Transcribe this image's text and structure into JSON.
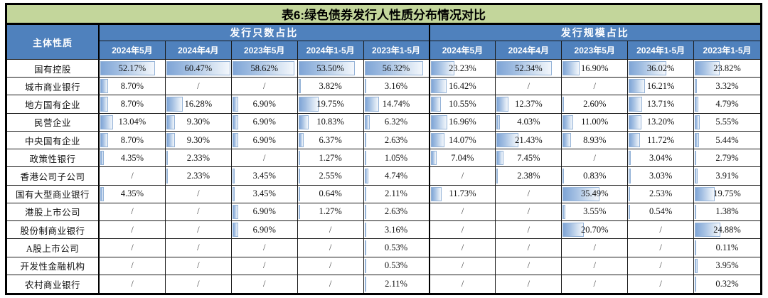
{
  "title": "表6:绿色债券发行人性质分布情况对比",
  "table": {
    "corner_header": "主体性质",
    "groups": [
      {
        "label": "发行只数占比",
        "columns": [
          "2024年5月",
          "2024年4月",
          "2023年5月",
          "2024年1-5月",
          "2023年1-5月"
        ]
      },
      {
        "label": "发行规模占比",
        "columns": [
          "2024年5月",
          "2024年4月",
          "2023年5月",
          "2024年1-5月",
          "2023年1-5月"
        ]
      }
    ],
    "missing_marker": "/",
    "rows": [
      {
        "label": "国有控股",
        "count": [
          "52.17%",
          "60.47%",
          "58.62%",
          "53.50%",
          "56.32%"
        ],
        "scale": [
          "23.23%",
          "52.34%",
          "16.90%",
          "36.02%",
          "23.82%"
        ]
      },
      {
        "label": "城市商业银行",
        "count": [
          "8.70%",
          "/",
          "/",
          "3.82%",
          "3.16%"
        ],
        "scale": [
          "16.42%",
          "/",
          "/",
          "16.21%",
          "3.32%"
        ]
      },
      {
        "label": "地方国有企业",
        "count": [
          "8.70%",
          "16.28%",
          "6.90%",
          "19.75%",
          "14.74%"
        ],
        "scale": [
          "10.55%",
          "12.37%",
          "2.60%",
          "13.71%",
          "4.79%"
        ]
      },
      {
        "label": "民营企业",
        "count": [
          "13.04%",
          "9.30%",
          "6.90%",
          "10.83%",
          "6.32%"
        ],
        "scale": [
          "16.96%",
          "4.03%",
          "11.00%",
          "13.20%",
          "5.55%"
        ]
      },
      {
        "label": "中央国有企业",
        "count": [
          "8.70%",
          "9.30%",
          "6.90%",
          "6.37%",
          "2.63%"
        ],
        "scale": [
          "14.07%",
          "21.43%",
          "8.93%",
          "11.72%",
          "5.44%"
        ]
      },
      {
        "label": "政策性银行",
        "count": [
          "4.35%",
          "2.33%",
          "/",
          "1.27%",
          "1.05%"
        ],
        "scale": [
          "7.04%",
          "7.45%",
          "/",
          "3.04%",
          "2.79%"
        ]
      },
      {
        "label": "香港公司子公司",
        "count": [
          "/",
          "2.33%",
          "3.45%",
          "2.55%",
          "4.74%"
        ],
        "scale": [
          "/",
          "2.38%",
          "0.83%",
          "3.03%",
          "3.91%"
        ]
      },
      {
        "label": "国有大型商业银行",
        "count": [
          "4.35%",
          "/",
          "3.45%",
          "0.64%",
          "2.11%"
        ],
        "scale": [
          "11.73%",
          "/",
          "35.49%",
          "2.53%",
          "19.75%"
        ]
      },
      {
        "label": "港股上市公司",
        "count": [
          "/",
          "/",
          "6.90%",
          "1.27%",
          "2.63%"
        ],
        "scale": [
          "/",
          "/",
          "3.55%",
          "0.54%",
          "1.38%"
        ]
      },
      {
        "label": "股份制商业银行",
        "count": [
          "/",
          "/",
          "6.90%",
          "/",
          "3.16%"
        ],
        "scale": [
          "/",
          "/",
          "20.70%",
          "/",
          "24.88%"
        ]
      },
      {
        "label": "A股上市公司",
        "count": [
          "/",
          "/",
          "/",
          "/",
          "0.53%"
        ],
        "scale": [
          "/",
          "/",
          "/",
          "/",
          "0.11%"
        ]
      },
      {
        "label": "开发性金融机构",
        "count": [
          "/",
          "/",
          "/",
          "/",
          "0.53%"
        ],
        "scale": [
          "/",
          "/",
          "/",
          "/",
          "3.95%"
        ]
      },
      {
        "label": "农村商业银行",
        "count": [
          "/",
          "/",
          "/",
          "/",
          "2.11%"
        ],
        "scale": [
          "/",
          "/",
          "/",
          "/",
          "0.32%"
        ]
      }
    ]
  },
  "colors": {
    "title_bg": "#C3D69B",
    "header_bg": "#4F81BD",
    "header_text": "#FFFFFF",
    "bar_fill_start": "#7FA5D6",
    "bar_fill_end": "#F3F7FC",
    "bar_border": "#95B3D7",
    "grid_line": "#000000"
  },
  "chart_data": {
    "type": "table",
    "title": "表6:绿色债券发行人性质分布情况对比",
    "row_header": "主体性质",
    "column_groups": [
      "发行只数占比",
      "发行规模占比"
    ],
    "columns": [
      "2024年5月",
      "2024年4月",
      "2023年5月",
      "2024年1-5月",
      "2023年1-5月"
    ],
    "unit": "%",
    "databar_style": "blue gradient left-aligned, length proportional to value, shared scale max ≈ 60.47",
    "rows": [
      {
        "label": "国有控股",
        "发行只数占比": [
          52.17,
          60.47,
          58.62,
          53.5,
          56.32
        ],
        "发行规模占比": [
          23.23,
          52.34,
          16.9,
          36.02,
          23.82
        ]
      },
      {
        "label": "城市商业银行",
        "发行只数占比": [
          8.7,
          null,
          null,
          3.82,
          3.16
        ],
        "发行规模占比": [
          16.42,
          null,
          null,
          16.21,
          3.32
        ]
      },
      {
        "label": "地方国有企业",
        "发行只数占比": [
          8.7,
          16.28,
          6.9,
          19.75,
          14.74
        ],
        "发行规模占比": [
          10.55,
          12.37,
          2.6,
          13.71,
          4.79
        ]
      },
      {
        "label": "民营企业",
        "发行只数占比": [
          13.04,
          9.3,
          6.9,
          10.83,
          6.32
        ],
        "发行规模占比": [
          16.96,
          4.03,
          11.0,
          13.2,
          5.55
        ]
      },
      {
        "label": "中央国有企业",
        "发行只数占比": [
          8.7,
          9.3,
          6.9,
          6.37,
          2.63
        ],
        "发行规模占比": [
          14.07,
          21.43,
          8.93,
          11.72,
          5.44
        ]
      },
      {
        "label": "政策性银行",
        "发行只数占比": [
          4.35,
          2.33,
          null,
          1.27,
          1.05
        ],
        "发行规模占比": [
          7.04,
          7.45,
          null,
          3.04,
          2.79
        ]
      },
      {
        "label": "香港公司子公司",
        "发行只数占比": [
          null,
          2.33,
          3.45,
          2.55,
          4.74
        ],
        "发行规模占比": [
          null,
          2.38,
          0.83,
          3.03,
          3.91
        ]
      },
      {
        "label": "国有大型商业银行",
        "发行只数占比": [
          4.35,
          null,
          3.45,
          0.64,
          2.11
        ],
        "发行规模占比": [
          11.73,
          null,
          35.49,
          2.53,
          19.75
        ]
      },
      {
        "label": "港股上市公司",
        "发行只数占比": [
          null,
          null,
          6.9,
          1.27,
          2.63
        ],
        "发行规模占比": [
          null,
          null,
          3.55,
          0.54,
          1.38
        ]
      },
      {
        "label": "股份制商业银行",
        "发行只数占比": [
          null,
          null,
          6.9,
          null,
          3.16
        ],
        "发行规模占比": [
          null,
          null,
          20.7,
          null,
          24.88
        ]
      },
      {
        "label": "A股上市公司",
        "发行只数占比": [
          null,
          null,
          null,
          null,
          0.53
        ],
        "发行规模占比": [
          null,
          null,
          null,
          null,
          0.11
        ]
      },
      {
        "label": "开发性金融机构",
        "发行只数占比": [
          null,
          null,
          null,
          null,
          0.53
        ],
        "发行规模占比": [
          null,
          null,
          null,
          null,
          3.95
        ]
      },
      {
        "label": "农村商业银行",
        "发行只数占比": [
          null,
          null,
          null,
          null,
          2.11
        ],
        "发行规模占比": [
          null,
          null,
          null,
          null,
          0.32
        ]
      }
    ]
  }
}
